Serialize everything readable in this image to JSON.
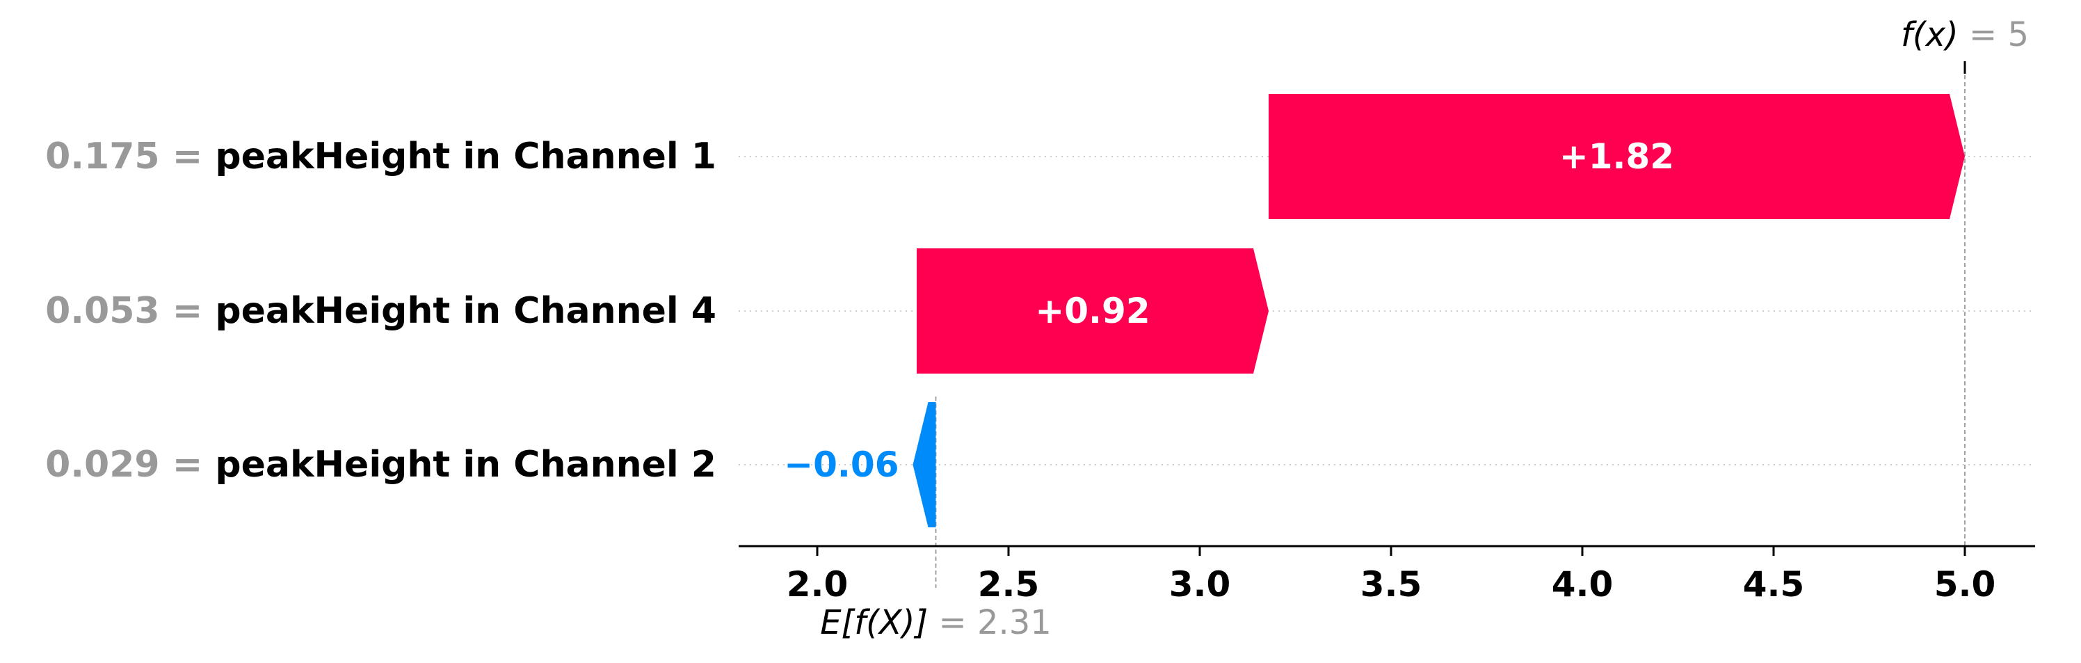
{
  "chart_data": {
    "type": "waterfall",
    "base_value": 2.31,
    "final_value": 5,
    "base_value_label": {
      "expr": "E[f(X)]",
      "eq": " = ",
      "value": "2.31"
    },
    "final_value_label": {
      "expr": "f(x)",
      "eq": " = ",
      "value": "5"
    },
    "features": [
      {
        "value_text": "0.175",
        "eq": " = ",
        "name": "peakHeight in Channel 1",
        "contribution": 1.82,
        "label": "+1.82",
        "start": 3.18,
        "end": 5.0
      },
      {
        "value_text": "0.053",
        "eq": " = ",
        "name": "peakHeight in Channel 4",
        "contribution": 0.92,
        "label": "+0.92",
        "start": 2.26,
        "end": 3.18
      },
      {
        "value_text": "0.029",
        "eq": " = ",
        "name": "peakHeight in Channel 2",
        "contribution": -0.06,
        "label": "−0.06",
        "start": 2.31,
        "end": 2.25
      }
    ],
    "x_ticks": [
      {
        "value": 2.0,
        "label": "2.0"
      },
      {
        "value": 2.5,
        "label": "2.5"
      },
      {
        "value": 3.0,
        "label": "3.0"
      },
      {
        "value": 3.5,
        "label": "3.5"
      },
      {
        "value": 4.0,
        "label": "4.0"
      },
      {
        "value": 4.5,
        "label": "4.5"
      },
      {
        "value": 5.0,
        "label": "5.0"
      }
    ],
    "xlim": [
      1.8,
      5.18
    ],
    "colors": {
      "positive": "#ff0051",
      "negative": "#008bfb",
      "feature_value": "#999999",
      "gridline": "#cccccc"
    }
  }
}
